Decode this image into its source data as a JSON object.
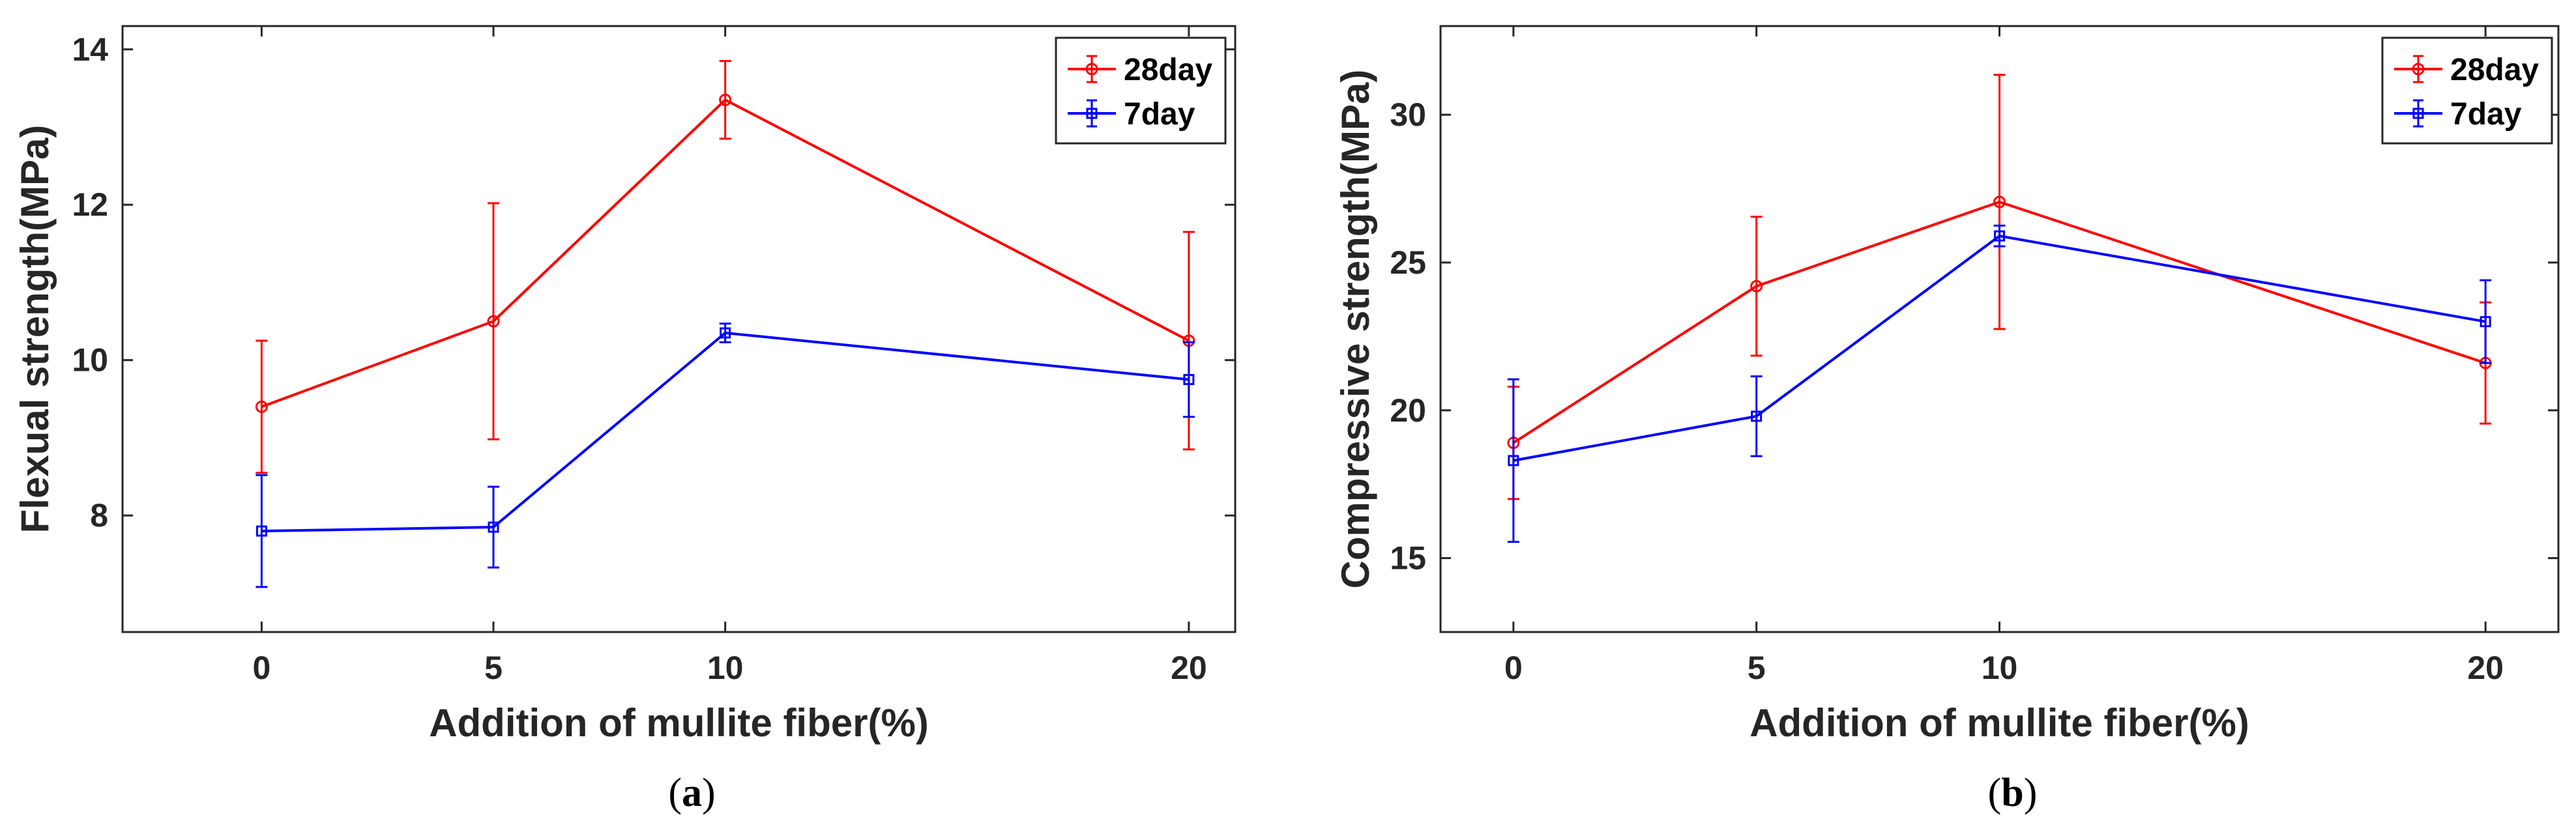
{
  "colors": {
    "series_28day": "#ff0000",
    "series_7day": "#0000ff",
    "axis": "#262626"
  },
  "chart_data": [
    {
      "type": "line",
      "panel": "a",
      "caption_letter": "a",
      "xlabel": "Addition of mullite fiber(%)",
      "ylabel": "Flexual strength(MPa)",
      "xlim": [
        -3,
        21
      ],
      "ylim": [
        6.5,
        14.3
      ],
      "xticks": [
        0,
        5,
        10,
        20
      ],
      "yticks": [
        8,
        10,
        12,
        14
      ],
      "legend_position": "top-right",
      "series": [
        {
          "name": "28day",
          "marker": "circle",
          "x": [
            0,
            5,
            10,
            20
          ],
          "values": [
            9.4,
            10.5,
            13.35,
            10.25
          ],
          "err": [
            0.85,
            1.52,
            0.5,
            1.4
          ]
        },
        {
          "name": "7day",
          "marker": "square",
          "x": [
            0,
            5,
            10,
            20
          ],
          "values": [
            7.8,
            7.85,
            10.35,
            9.75
          ],
          "err": [
            0.72,
            0.52,
            0.12,
            0.48
          ]
        }
      ]
    },
    {
      "type": "line",
      "panel": "b",
      "caption_letter": "b",
      "xlabel": "Addition of mullite fiber(%)",
      "ylabel": "Compressive strength(MPa)",
      "xlim": [
        -1.5,
        21.5
      ],
      "ylim": [
        12.5,
        33
      ],
      "xticks": [
        0,
        5,
        10,
        20
      ],
      "yticks": [
        15,
        20,
        25,
        30
      ],
      "legend_position": "top-right",
      "series": [
        {
          "name": "28day",
          "marker": "circle",
          "x": [
            0,
            5,
            10,
            20
          ],
          "values": [
            18.9,
            24.2,
            27.05,
            21.6
          ],
          "err": [
            1.9,
            2.35,
            4.3,
            2.05
          ]
        },
        {
          "name": "7day",
          "marker": "square",
          "x": [
            0,
            5,
            10,
            20
          ],
          "values": [
            18.3,
            19.8,
            25.9,
            23.0
          ],
          "err": [
            2.75,
            1.35,
            0.35,
            1.4
          ]
        }
      ]
    }
  ]
}
